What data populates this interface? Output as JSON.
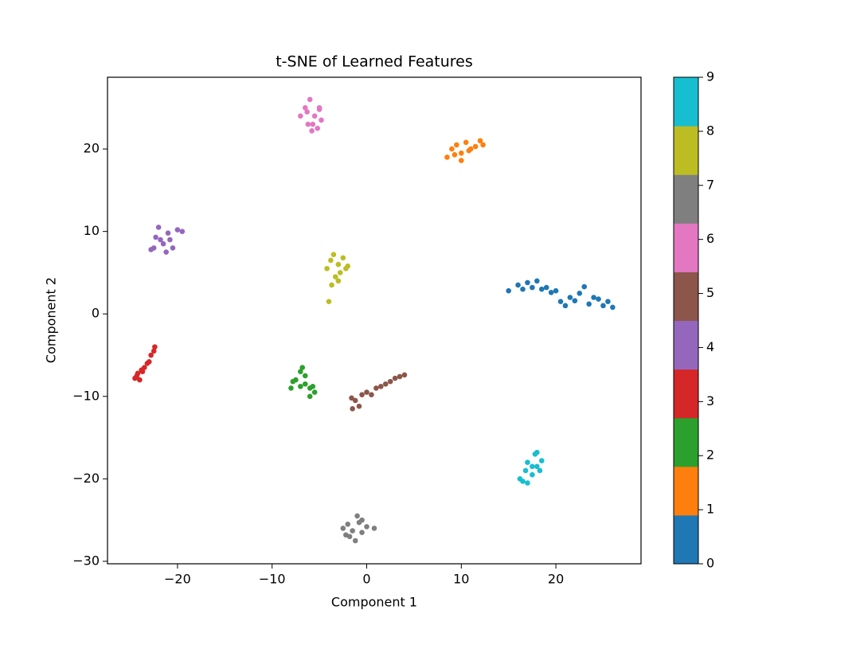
{
  "chart_data": {
    "type": "scatter",
    "title": "t-SNE of Learned Features",
    "xlabel": "Component 1",
    "ylabel": "Component 2",
    "xlim": [
      -27.4,
      29.0
    ],
    "ylim": [
      -30.3,
      28.7
    ],
    "xticks": [
      {
        "value": -20,
        "label": "−20"
      },
      {
        "value": -10,
        "label": "−10"
      },
      0,
      10,
      20
    ],
    "yticks": [
      {
        "value": -30,
        "label": "−30"
      },
      {
        "value": -20,
        "label": "−20"
      },
      {
        "value": -10,
        "label": "−10"
      },
      0,
      10,
      20
    ],
    "colorbar": {
      "lim": [
        0,
        9
      ],
      "ticks": [
        0,
        1,
        2,
        3,
        4,
        5,
        6,
        7,
        8,
        9
      ],
      "colors": [
        "#1f77b4",
        "#ff7f0e",
        "#2ca02c",
        "#d62728",
        "#9467bd",
        "#8c564b",
        "#e377c2",
        "#7f7f7f",
        "#bcbd22",
        "#17becf"
      ]
    },
    "series": [
      {
        "color": "#1f77b4",
        "x": [
          15,
          16,
          16.5,
          17,
          17.5,
          18,
          18.5,
          19,
          19.5,
          20,
          20.5,
          21,
          21.5,
          22,
          22.5,
          23,
          23.5,
          24,
          24.5,
          25,
          25.5,
          26
        ],
        "y": [
          2.8,
          3.5,
          3.0,
          3.8,
          3.2,
          4.0,
          3.0,
          3.2,
          2.6,
          2.8,
          1.5,
          1.0,
          2.0,
          1.6,
          2.5,
          3.3,
          1.2,
          2.0,
          1.8,
          1.0,
          1.5,
          0.8
        ]
      },
      {
        "color": "#ff7f0e",
        "x": [
          8.5,
          9,
          9.5,
          10,
          10,
          10.5,
          11,
          11.5,
          12,
          12.3,
          9.3,
          10.8
        ],
        "y": [
          19,
          20,
          20.5,
          19.5,
          18.6,
          20.8,
          20,
          20.3,
          21,
          20.5,
          19.3,
          19.8
        ]
      },
      {
        "color": "#2ca02c",
        "x": [
          -8,
          -7.5,
          -7,
          -6.8,
          -6.5,
          -6,
          -5.5,
          -6,
          -7,
          -7.8,
          -5.7,
          -6.5
        ],
        "y": [
          -9,
          -8,
          -7,
          -6.5,
          -8.5,
          -9,
          -9.5,
          -10,
          -8.8,
          -8.2,
          -8.8,
          -7.5
        ]
      },
      {
        "color": "#d62728",
        "x": [
          -24.5,
          -24.2,
          -24,
          -23.8,
          -23.5,
          -23.2,
          -23,
          -22.8,
          -22.5,
          -22.4,
          -24.3,
          -23.7
        ],
        "y": [
          -7.8,
          -7.2,
          -8,
          -6.8,
          -6.5,
          -6,
          -5.8,
          -5,
          -4.5,
          -4,
          -7.5,
          -7
        ]
      },
      {
        "color": "#9467bd",
        "x": [
          -22.5,
          -22.8,
          -22,
          -21.8,
          -21.5,
          -21,
          -20.5,
          -20,
          -19.5,
          -21.2,
          -22.3,
          -20.8
        ],
        "y": [
          8,
          7.8,
          10.5,
          9,
          8.5,
          9.8,
          8,
          10.2,
          10,
          7.5,
          9.3,
          9
        ]
      },
      {
        "color": "#8c564b",
        "x": [
          -1.5,
          -1.2,
          -0.8,
          -0.5,
          0,
          0.5,
          1,
          1.5,
          2,
          2.5,
          3,
          3.5,
          4,
          -1.6
        ],
        "y": [
          -11.5,
          -10.5,
          -11.2,
          -9.8,
          -9.5,
          -9.8,
          -9,
          -8.8,
          -8.5,
          -8.2,
          -7.8,
          -7.6,
          -7.4,
          -10.2
        ]
      },
      {
        "color": "#e377c2",
        "x": [
          -7,
          -6.5,
          -6,
          -6.2,
          -5.8,
          -5.5,
          -5,
          -4.8,
          -5.2,
          -6.3,
          -5,
          -5.7
        ],
        "y": [
          24,
          25,
          26,
          23,
          22.2,
          24,
          25,
          23.5,
          22.5,
          24.5,
          24.8,
          23
        ]
      },
      {
        "color": "#7f7f7f",
        "x": [
          -2.5,
          -2,
          -1.8,
          -1.5,
          -1,
          -0.5,
          -0.5,
          0,
          0.8,
          -1.2,
          -0.8,
          -2.2
        ],
        "y": [
          -26,
          -25.5,
          -27,
          -26.3,
          -24.5,
          -25,
          -26.5,
          -25.8,
          -26,
          -27.5,
          -25.3,
          -26.8
        ]
      },
      {
        "color": "#bcbd22",
        "x": [
          -4.2,
          -4,
          -3.8,
          -3.5,
          -3.3,
          -3,
          -2.8,
          -2.5,
          -2.2,
          -2,
          -3.7,
          -3
        ],
        "y": [
          5.5,
          1.5,
          6.5,
          7.2,
          4.5,
          6,
          5,
          6.8,
          5.5,
          5.8,
          3.5,
          4
        ]
      },
      {
        "color": "#17becf",
        "x": [
          16.2,
          16.5,
          17,
          16.8,
          17,
          17.5,
          17.8,
          18,
          18.3,
          18.5,
          17.5,
          18
        ],
        "y": [
          -20,
          -20.3,
          -20.5,
          -19,
          -18,
          -19.5,
          -17,
          -18.5,
          -19,
          -17.8,
          -18.5,
          -16.8
        ]
      }
    ]
  }
}
